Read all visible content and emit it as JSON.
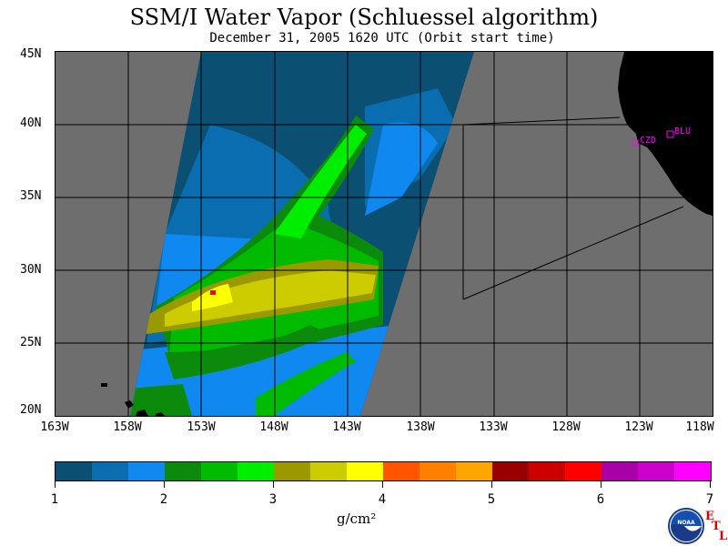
{
  "header": {
    "title": "SSM/I Water Vapor (Schluessel algorithm)",
    "subtitle": "December 31, 2005  1620 UTC  (Orbit start time)"
  },
  "map": {
    "latitude_labels": [
      "45N",
      "40N",
      "35N",
      "30N",
      "25N",
      "20N"
    ],
    "longitude_labels": [
      "163W",
      "158W",
      "153W",
      "148W",
      "143W",
      "138W",
      "133W",
      "128W",
      "123W",
      "118W"
    ],
    "stations": [
      {
        "id": "CZD",
        "label": "CZD"
      },
      {
        "id": "BLU",
        "label": "BLU"
      }
    ],
    "colors": {
      "background": "#6e6e6e",
      "land": "#000000",
      "grid": "#000000",
      "station": "#ff00ff"
    }
  },
  "colorbar": {
    "units": "g/cm²",
    "tick_labels": [
      "1",
      "2",
      "3",
      "4",
      "5",
      "6",
      "7"
    ],
    "colors": [
      "#0b4f73",
      "#0a6db0",
      "#0f88f0",
      "#0b8a0c",
      "#00bb00",
      "#00ee00",
      "#9a9a00",
      "#cccc00",
      "#ffff00",
      "#ff5500",
      "#ff7f00",
      "#ffa500",
      "#990000",
      "#cc0000",
      "#ff0000",
      "#aa00aa",
      "#cc00cc",
      "#ff00ff"
    ]
  },
  "logo": {
    "text": "NOAA",
    "letters": [
      "E",
      "T",
      "L"
    ]
  }
}
